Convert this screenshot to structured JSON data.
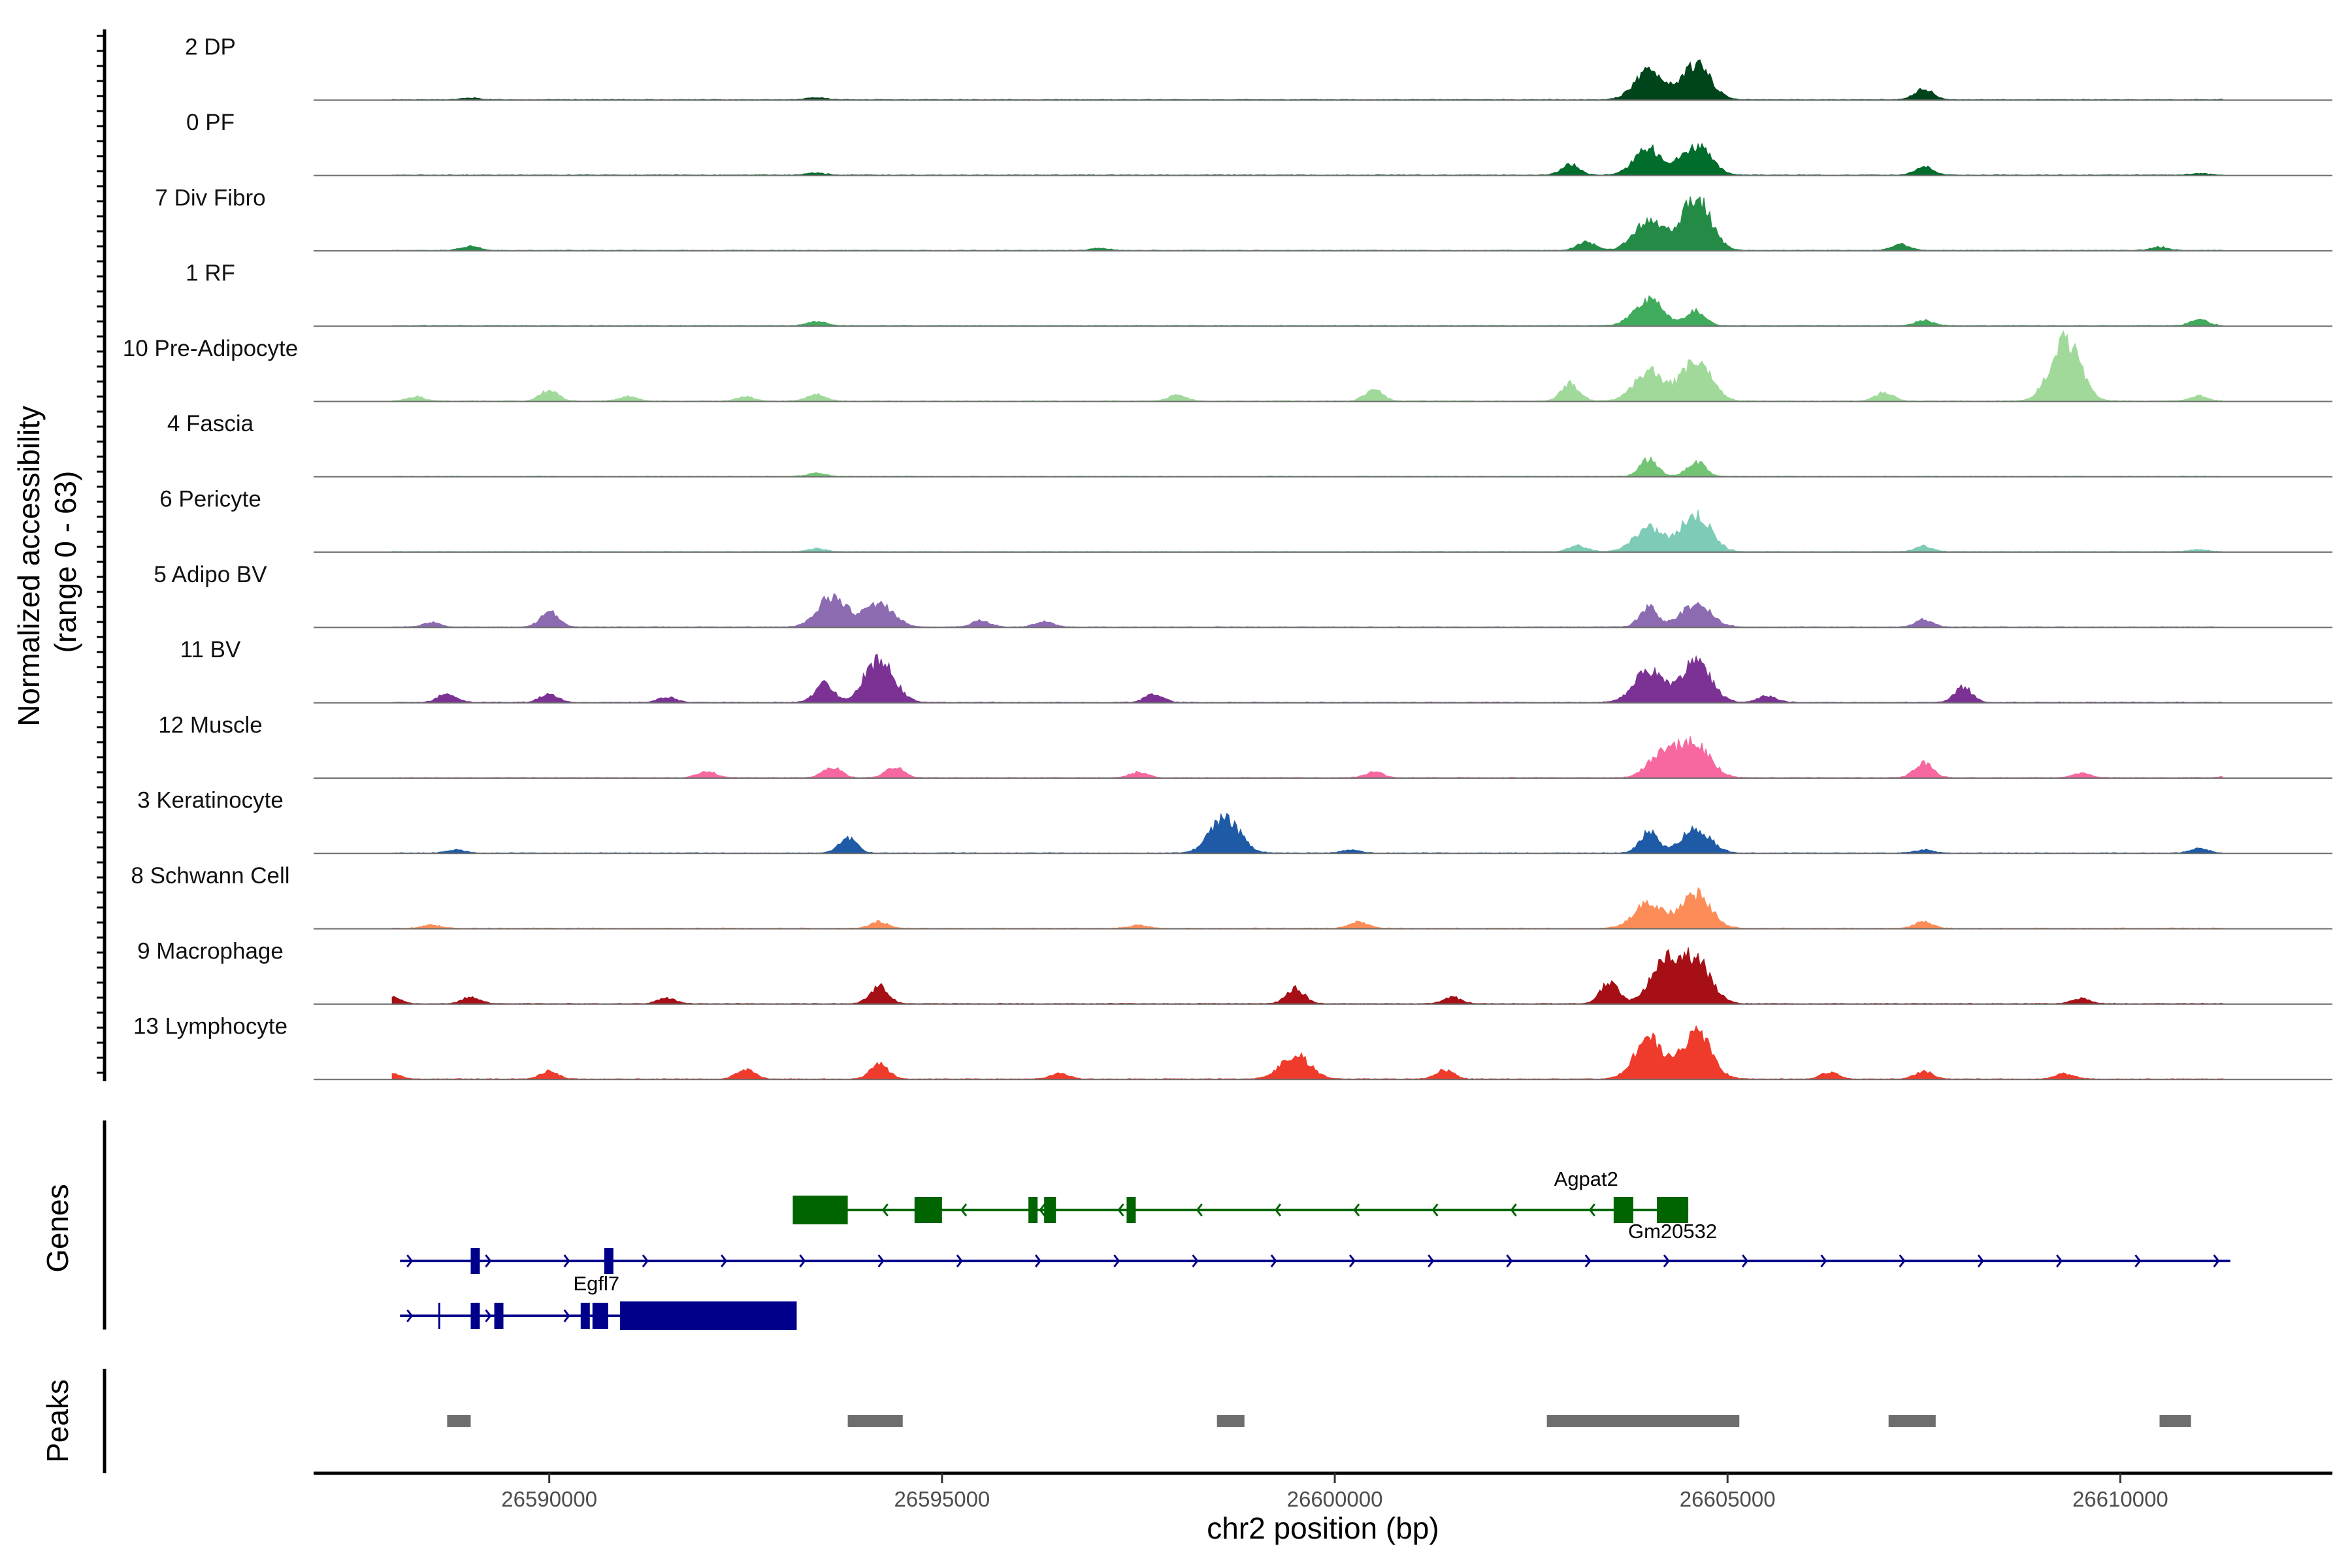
{
  "chart_data": {
    "type": "area",
    "title": "",
    "xlabel": "chr2 position (bp)",
    "ylabel_lines": [
      "Normalized accessibility",
      "(range 0 - 63)"
    ],
    "ylim": [
      0,
      63
    ],
    "xlim": [
      26587000,
      26612700
    ],
    "xticks": [
      26590000,
      26595000,
      26600000,
      26605000,
      26610000
    ],
    "xtick_labels": [
      "26590000",
      "26595000",
      "26600000",
      "26605000",
      "26610000"
    ],
    "region_label": "Genes",
    "peaks_label": "Peaks",
    "tracks": [
      {
        "name": "2 DP",
        "color": "#00441b",
        "peaks": [
          [
            26604000,
            26
          ],
          [
            26604600,
            32
          ],
          [
            26607500,
            10
          ],
          [
            26593400,
            2
          ],
          [
            26589000,
            1.5
          ],
          [
            26611500,
            1.5
          ]
        ]
      },
      {
        "name": "0 PF",
        "color": "#006d2c",
        "peaks": [
          [
            26604000,
            24
          ],
          [
            26604600,
            27
          ],
          [
            26603000,
            10
          ],
          [
            26607500,
            8
          ],
          [
            26593400,
            2
          ],
          [
            26611000,
            1.5
          ]
        ]
      },
      {
        "name": "7 Div Fibro",
        "color": "#238b45",
        "peaks": [
          [
            26604000,
            28
          ],
          [
            26604600,
            48
          ],
          [
            26603200,
            8
          ],
          [
            26607200,
            6
          ],
          [
            26589000,
            4
          ],
          [
            26597000,
            2
          ],
          [
            26610500,
            3
          ]
        ]
      },
      {
        "name": "1 RF",
        "color": "#41ab5d",
        "peaks": [
          [
            26604000,
            24
          ],
          [
            26604600,
            14
          ],
          [
            26607500,
            5
          ],
          [
            26593400,
            4
          ],
          [
            26611000,
            6
          ]
        ]
      },
      {
        "name": "10 Pre-Adipocyte",
        "color": "#a1d99b",
        "peaks": [
          [
            26604000,
            28
          ],
          [
            26604600,
            38
          ],
          [
            26603000,
            16
          ],
          [
            26609300,
            60
          ],
          [
            26590000,
            10
          ],
          [
            26593400,
            6
          ],
          [
            26598000,
            6
          ],
          [
            26600500,
            10
          ],
          [
            26607000,
            8
          ],
          [
            26611000,
            5
          ],
          [
            26588300,
            4
          ],
          [
            26591000,
            4
          ],
          [
            26592500,
            4
          ]
        ]
      },
      {
        "name": "4 Fascia",
        "color": "#74c476",
        "peaks": [
          [
            26604000,
            16
          ],
          [
            26604600,
            14
          ],
          [
            26593400,
            3
          ]
        ]
      },
      {
        "name": "6 Pericyte",
        "color": "#7ecbb7",
        "peaks": [
          [
            26604000,
            22
          ],
          [
            26604600,
            35
          ],
          [
            26603100,
            6
          ],
          [
            26607500,
            5
          ],
          [
            26593400,
            3
          ],
          [
            26611000,
            2
          ]
        ]
      },
      {
        "name": "5 Adipo BV",
        "color": "#8c6bb1",
        "peaks": [
          [
            26590000,
            14
          ],
          [
            26593600,
            28
          ],
          [
            26594200,
            22
          ],
          [
            26604000,
            18
          ],
          [
            26604600,
            22
          ],
          [
            26607500,
            7
          ],
          [
            26588500,
            4
          ],
          [
            26595500,
            6
          ],
          [
            26596300,
            5
          ]
        ]
      },
      {
        "name": "11 BV",
        "color": "#7b3294",
        "peaks": [
          [
            26593500,
            18
          ],
          [
            26594200,
            40
          ],
          [
            26604000,
            30
          ],
          [
            26604600,
            38
          ],
          [
            26588700,
            8
          ],
          [
            26590000,
            8
          ],
          [
            26591500,
            5
          ],
          [
            26597700,
            8
          ],
          [
            26608000,
            14
          ],
          [
            26605500,
            6
          ]
        ]
      },
      {
        "name": "12 Muscle",
        "color": "#f768a1",
        "peaks": [
          [
            26604200,
            26
          ],
          [
            26604600,
            30
          ],
          [
            26593600,
            10
          ],
          [
            26594400,
            10
          ],
          [
            26607500,
            14
          ],
          [
            26592000,
            6
          ],
          [
            26597500,
            5
          ],
          [
            26600500,
            5
          ],
          [
            26609500,
            4
          ],
          [
            26611500,
            6
          ]
        ]
      },
      {
        "name": "3 Keratinocyte",
        "color": "#1f5aa6",
        "peaks": [
          [
            26593800,
            14
          ],
          [
            26598600,
            33
          ],
          [
            26604000,
            20
          ],
          [
            26604600,
            22
          ],
          [
            26600200,
            3
          ],
          [
            26588800,
            3
          ],
          [
            26607500,
            3
          ],
          [
            26611000,
            4
          ]
        ]
      },
      {
        "name": "8 Schwann Cell",
        "color": "#fc8d59",
        "peaks": [
          [
            26604000,
            24
          ],
          [
            26604600,
            32
          ],
          [
            26594200,
            6
          ],
          [
            26600300,
            6
          ],
          [
            26607500,
            6
          ],
          [
            26588500,
            3
          ],
          [
            26597500,
            3
          ]
        ]
      },
      {
        "name": "9 Macrophage",
        "color": "#a50f15",
        "peaks": [
          [
            26603500,
            20
          ],
          [
            26604200,
            38
          ],
          [
            26604600,
            40
          ],
          [
            26594200,
            16
          ],
          [
            26599500,
            14
          ],
          [
            26588000,
            6
          ],
          [
            26589000,
            6
          ],
          [
            26591500,
            5
          ],
          [
            26601500,
            6
          ],
          [
            26609500,
            5
          ]
        ]
      },
      {
        "name": "13 Lymphocyte",
        "color": "#ef3b2c",
        "peaks": [
          [
            26604000,
            38
          ],
          [
            26604600,
            44
          ],
          [
            26594200,
            14
          ],
          [
            26599500,
            22
          ],
          [
            26588000,
            5
          ],
          [
            26590000,
            7
          ],
          [
            26592500,
            9
          ],
          [
            26596500,
            5
          ],
          [
            26601400,
            8
          ],
          [
            26606300,
            6
          ],
          [
            26607500,
            7
          ],
          [
            26609300,
            5
          ]
        ]
      }
    ],
    "genes": [
      {
        "name": "Agpat2",
        "strand": "-",
        "color": "#006400",
        "start": 26593100,
        "end": 26604500,
        "exons": [
          [
            26593100,
            26593800
          ],
          [
            26594650,
            26595000
          ],
          [
            26596100,
            26596200
          ],
          [
            26596300,
            26596450
          ],
          [
            26597350,
            26597450
          ],
          [
            26603550,
            26603800
          ],
          [
            26604100,
            26604500
          ]
        ]
      },
      {
        "name": "Gm20532",
        "strand": "+",
        "color": "#00008b",
        "start": 26588100,
        "end": 26611400,
        "exons": [
          [
            26589000,
            26589100
          ],
          [
            26590700,
            26590800
          ]
        ]
      },
      {
        "name": "Egfl7",
        "strand": "+",
        "color": "#00008b",
        "start": 26588100,
        "end": 26593150,
        "exons": [
          [
            26589000,
            26589100
          ],
          [
            26589300,
            26589400
          ],
          [
            26590400,
            26590500
          ],
          [
            26590550,
            26590750
          ],
          [
            26590900,
            26593150
          ]
        ]
      }
    ],
    "peaks_regions": [
      [
        26588700,
        26589000
      ],
      [
        26593800,
        26594500
      ],
      [
        26598500,
        26598850
      ],
      [
        26602700,
        26605150
      ],
      [
        26607050,
        26607650
      ],
      [
        26610500,
        26610900
      ]
    ]
  }
}
